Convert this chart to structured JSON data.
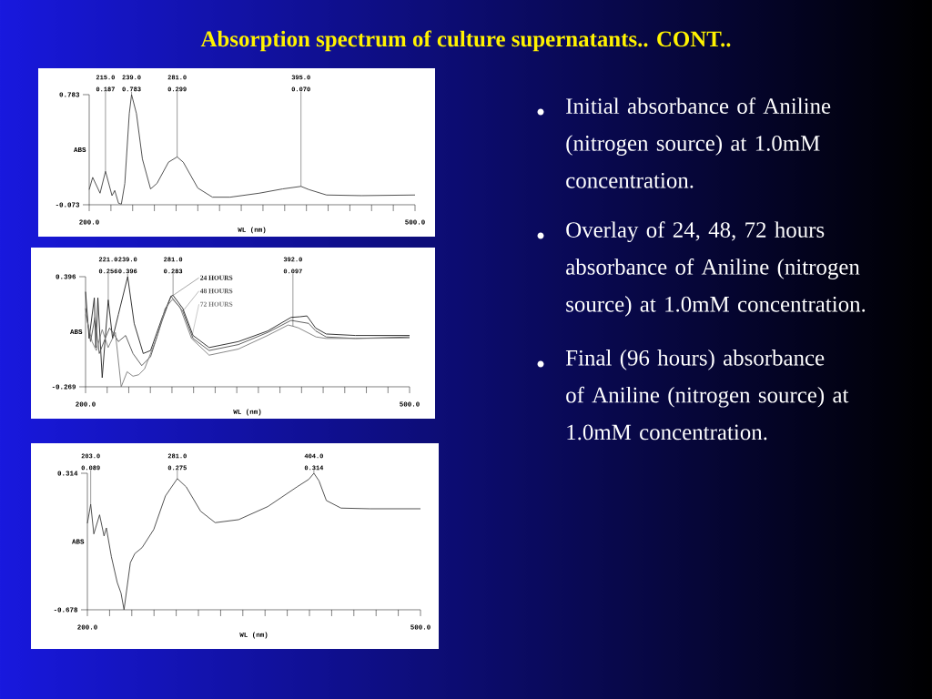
{
  "chart_data": [
    {
      "type": "other",
      "title": "Absorption spectrum of culture supernatants.. CONT..",
      "annotations": [
        "Initial absorbance of Aniline (nitrogen source) at 1.0mM concentration.",
        "Overlay of 24, 48, 72 hours absorbance of Aniline (nitrogen source) at 1.0mM concentration.",
        "Final (96 hours) absorbance of Aniline (nitrogen source) at 1.0mM concentration."
      ]
    },
    {
      "type": "line",
      "xlabel": "WL (nm)",
      "ylabel": "ABS",
      "xlim": [
        200,
        500
      ],
      "ylim": [
        -0.073,
        0.783
      ],
      "xticks": [
        {
          "value": 200,
          "label": "200.0"
        },
        {
          "value": 220,
          "label": null
        },
        {
          "value": 240,
          "label": null
        },
        {
          "value": 260,
          "label": null
        },
        {
          "value": 280,
          "label": null
        },
        {
          "value": 300,
          "label": null
        },
        {
          "value": 320,
          "label": null
        },
        {
          "value": 340,
          "label": null
        },
        {
          "value": 360,
          "label": null
        },
        {
          "value": 380,
          "label": null
        },
        {
          "value": 400,
          "label": null
        },
        {
          "value": 420,
          "label": null
        },
        {
          "value": 440,
          "label": null
        },
        {
          "value": 460,
          "label": null
        },
        {
          "value": 480,
          "label": null
        },
        {
          "value": 500,
          "label": "500.0"
        }
      ],
      "yticks": [
        -0.073,
        0.783
      ],
      "series": [
        {
          "color": "#404040",
          "x": [
            200,
            203.2,
            210,
            215,
            221,
            223.5,
            227,
            229.6,
            232.8,
            236.9,
            239,
            243.5,
            249,
            256.5,
            262.4,
            273,
            281,
            286.6,
            300,
            313.5,
            329.7,
            356.6,
            378,
            395,
            402.3,
            418.5,
            450.7,
            500
          ],
          "values": [
            0.045,
            0.14,
            0.017,
            0.187,
            -0.002,
            0.038,
            -0.061,
            -0.068,
            0.093,
            0.636,
            0.783,
            0.636,
            0.282,
            0.05,
            0.093,
            0.258,
            0.299,
            0.258,
            0.057,
            -0.014,
            -0.014,
            0.017,
            0.05,
            0.07,
            0.045,
            0.003,
            -0.002,
            0.003
          ]
        }
      ],
      "annotations": [
        {
          "text": "215.0 0.187",
          "x": 215,
          "y": 0.187
        },
        {
          "text": "239.0 0.783",
          "x": 239,
          "y": 0.783
        },
        {
          "text": "281.0 0.299",
          "x": 281,
          "y": 0.299
        },
        {
          "text": "395.0 0.070",
          "x": 395,
          "y": 0.07
        }
      ]
    },
    {
      "type": "line",
      "xlabel": "WL (nm)",
      "ylabel": "ABS",
      "xlim": [
        200,
        500
      ],
      "ylim": [
        -0.269,
        0.396
      ],
      "xticks": [
        {
          "value": 200,
          "label": "200.0"
        },
        {
          "value": 220,
          "label": null
        },
        {
          "value": 240,
          "label": null
        },
        {
          "value": 260,
          "label": null
        },
        {
          "value": 280,
          "label": null
        },
        {
          "value": 300,
          "label": null
        },
        {
          "value": 320,
          "label": null
        },
        {
          "value": 340,
          "label": null
        },
        {
          "value": 360,
          "label": null
        },
        {
          "value": 380,
          "label": null
        },
        {
          "value": 400,
          "label": null
        },
        {
          "value": 420,
          "label": null
        },
        {
          "value": 440,
          "label": null
        },
        {
          "value": 460,
          "label": null
        },
        {
          "value": 480,
          "label": null
        },
        {
          "value": 500,
          "label": "500.0"
        }
      ],
      "yticks": [
        -0.269,
        0.396
      ],
      "series": [
        {
          "name": "24 HOURS",
          "color": "#202020",
          "x": [
            200,
            203.3,
            208.1,
            209.5,
            211.4,
            215.4,
            221,
            225,
            230.4,
            239,
            245,
            253.4,
            260.2,
            271,
            279.1,
            281,
            290,
            299.5,
            314.4,
            341.5,
            368.6,
            390.2,
            398.4,
            405,
            413,
            422.8,
            449.9,
            500
          ],
          "values": [
            0.305,
            0.023,
            0.268,
            -0.032,
            0.268,
            -0.214,
            0.256,
            0.023,
            0.168,
            0.396,
            0.114,
            -0.068,
            -0.05,
            0.15,
            0.278,
            0.283,
            0.205,
            0.041,
            -0.032,
            0.004,
            0.068,
            0.15,
            0.154,
            0.159,
            0.086,
            0.05,
            0.041,
            0.041
          ]
        },
        {
          "name": "48 HOURS",
          "color": "#505050",
          "x": [
            200,
            204.6,
            208.7,
            212.7,
            218.2,
            222.2,
            226.3,
            230.4,
            237.1,
            243.9,
            252,
            260.2,
            271,
            279.1,
            290,
            299.5,
            314.4,
            341.5,
            368.6,
            390.2,
            406.5,
            413.2,
            422.8,
            449.9,
            500
          ],
          "values": [
            0.205,
            0.004,
            0.15,
            -0.068,
            0.023,
            0.086,
            0.05,
            0.004,
            0.041,
            -0.068,
            -0.141,
            -0.087,
            0.132,
            0.278,
            0.187,
            0.023,
            -0.05,
            -0.014,
            0.059,
            0.132,
            0.114,
            0.068,
            0.032,
            0.023,
            0.032
          ]
        },
        {
          "name": "72 HOURS",
          "color": "#7a7a7a",
          "x": [
            200,
            206,
            210,
            215.4,
            220.9,
            227.6,
            233,
            238.5,
            243.9,
            249.3,
            254.7,
            265.6,
            273.7,
            280.5,
            287.3,
            298.1,
            314.4,
            341.5,
            368.6,
            387.5,
            392,
            397,
            413.4,
            422.8,
            449.9,
            500
          ],
          "values": [
            0.168,
            0.004,
            -0.05,
            0.077,
            -0.032,
            0.059,
            -0.269,
            -0.178,
            -0.205,
            -0.196,
            -0.16,
            0.023,
            0.205,
            0.259,
            0.214,
            0.023,
            -0.078,
            -0.041,
            0.041,
            0.104,
            0.097,
            0.087,
            0.032,
            0.023,
            0.023,
            0.026
          ]
        }
      ],
      "annotations": [
        {
          "text": "221.0 0.256",
          "x": 221,
          "y": 0.256
        },
        {
          "text": "239.0 0.396",
          "x": 239,
          "y": 0.396
        },
        {
          "text": "281.0 0.283",
          "x": 281,
          "y": 0.283
        },
        {
          "text": "392.0 0.097",
          "x": 392,
          "y": 0.097
        }
      ]
    },
    {
      "type": "line",
      "xlabel": "WL (nm)",
      "ylabel": "ABS",
      "xlim": [
        200,
        500
      ],
      "ylim": [
        -0.678,
        0.314
      ],
      "xticks": [
        {
          "value": 200,
          "label": "200.0"
        },
        {
          "value": 220,
          "label": null
        },
        {
          "value": 240,
          "label": null
        },
        {
          "value": 260,
          "label": null
        },
        {
          "value": 280,
          "label": null
        },
        {
          "value": 300,
          "label": null
        },
        {
          "value": 320,
          "label": null
        },
        {
          "value": 340,
          "label": null
        },
        {
          "value": 360,
          "label": null
        },
        {
          "value": 380,
          "label": null
        },
        {
          "value": 400,
          "label": null
        },
        {
          "value": 420,
          "label": null
        },
        {
          "value": 440,
          "label": null
        },
        {
          "value": 460,
          "label": null
        },
        {
          "value": 480,
          "label": null
        },
        {
          "value": 500,
          "label": "500.0"
        }
      ],
      "yticks": [
        -0.678,
        0.314
      ],
      "series": [
        {
          "color": "#404040",
          "x": [
            200,
            203,
            205.8,
            211,
            215,
            217.1,
            221.6,
            226.9,
            230.3,
            233,
            238.7,
            242.7,
            249.3,
            259.8,
            270.3,
            281,
            289,
            302,
            315.1,
            336.2,
            362.5,
            388.8,
            399.4,
            404,
            408.6,
            415.2,
            428.4,
            454.7,
            500
          ],
          "values": [
            -0.05,
            0.089,
            -0.127,
            0.012,
            -0.142,
            -0.083,
            -0.292,
            -0.48,
            -0.557,
            -0.678,
            -0.336,
            -0.27,
            -0.226,
            -0.094,
            0.149,
            0.275,
            0.215,
            0.038,
            -0.045,
            -0.023,
            0.072,
            0.215,
            0.27,
            0.314,
            0.259,
            0.116,
            0.061,
            0.056,
            0.056
          ]
        }
      ],
      "annotations": [
        {
          "text": "203.0 0.089",
          "x": 203,
          "y": 0.089
        },
        {
          "text": "281.0 0.275",
          "x": 281,
          "y": 0.275
        },
        {
          "text": "404.0 0.314",
          "x": 404,
          "y": 0.314
        }
      ]
    }
  ]
}
